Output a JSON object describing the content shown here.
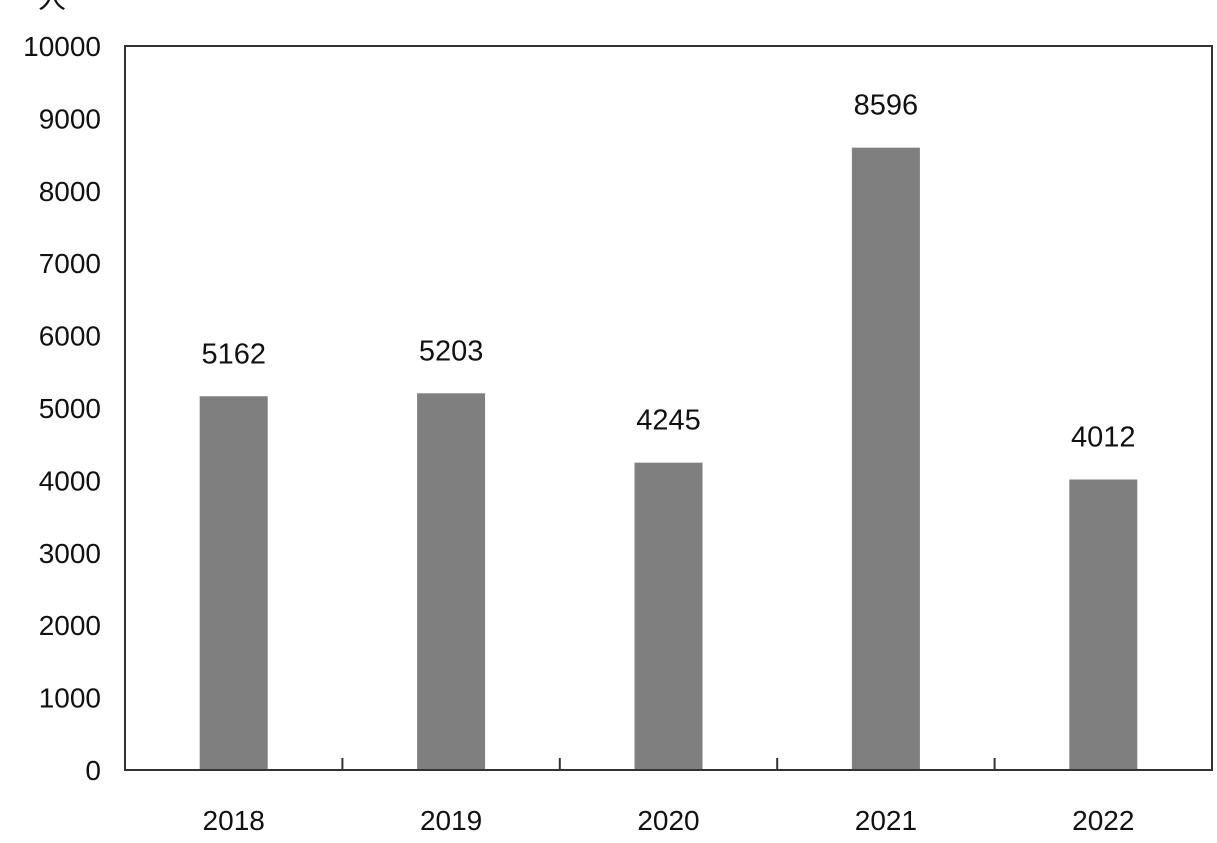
{
  "chart_data": {
    "type": "bar",
    "title": "",
    "unit_label": "人",
    "xlabel": "",
    "ylabel": "",
    "categories": [
      "2018",
      "2019",
      "2020",
      "2021",
      "2022"
    ],
    "values": [
      5162,
      5203,
      4245,
      8596,
      4012
    ],
    "data_labels": [
      "5162",
      "5203",
      "4245",
      "8596",
      "4012"
    ],
    "ylim": [
      0,
      10000
    ],
    "yticks": [
      "0",
      "1000",
      "2000",
      "3000",
      "4000",
      "5000",
      "6000",
      "7000",
      "8000",
      "9000",
      "10000"
    ],
    "grid": false,
    "legend": "none",
    "bar_color": "#7f7f7f",
    "axis_color": "#333333"
  }
}
